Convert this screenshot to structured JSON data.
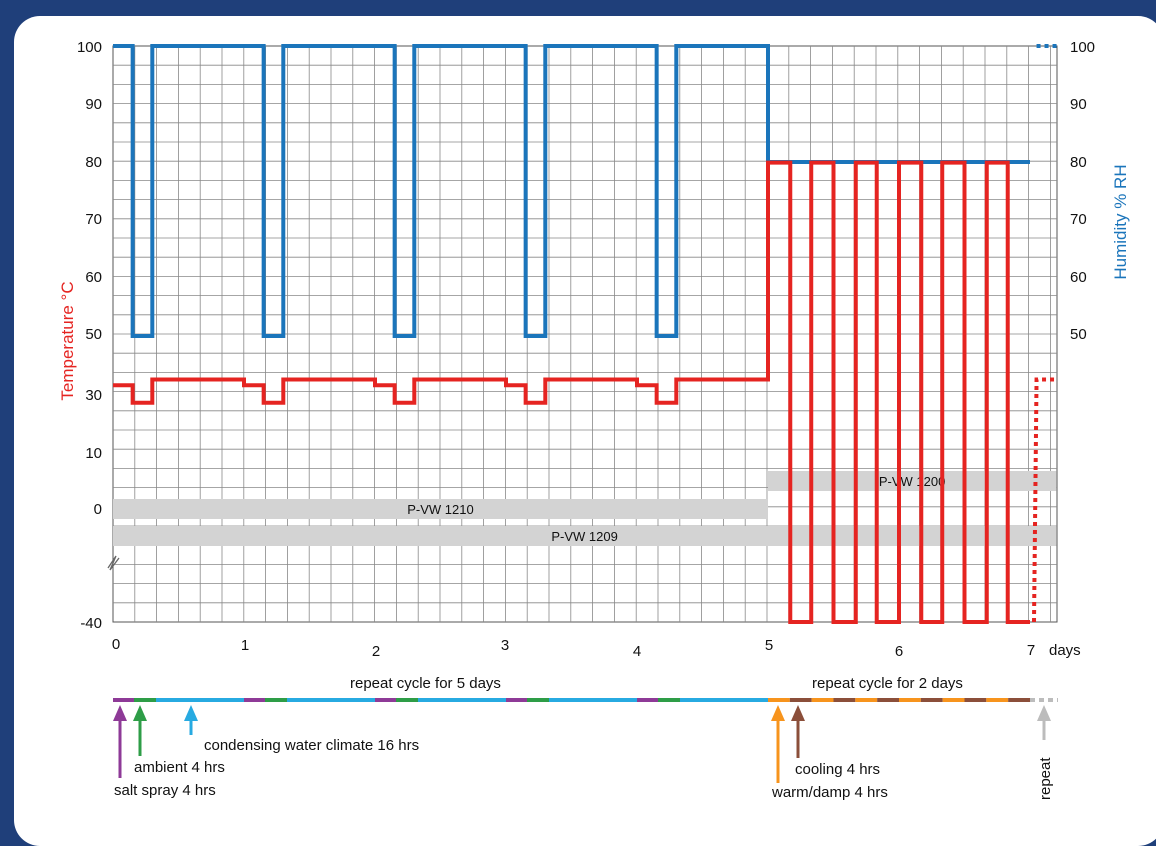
{
  "chart_data": {
    "type": "line",
    "x_unit": "days",
    "xlim": [
      0,
      7.3
    ],
    "x_ticks": [
      "0",
      "1",
      "2",
      "3",
      "4",
      "5",
      "6",
      "7"
    ],
    "left_axis": {
      "label": "Temperature °C",
      "ticks": [
        "100",
        "90",
        "80",
        "70",
        "60",
        "50",
        "30",
        "10",
        "0",
        "-40"
      ]
    },
    "right_axis": {
      "label": "Humidity % RH",
      "ticks": [
        "100",
        "90",
        "80",
        "70",
        "60",
        "50"
      ]
    },
    "series": [
      {
        "name": "Temperature °C",
        "color": "#e52421",
        "unit": "°C",
        "steps": [
          [
            0.0,
            33
          ],
          [
            0.15,
            27
          ],
          [
            0.3,
            35
          ],
          [
            1.0,
            33
          ],
          [
            1.15,
            27
          ],
          [
            1.3,
            35
          ],
          [
            2.0,
            33
          ],
          [
            2.15,
            27
          ],
          [
            2.3,
            35
          ],
          [
            3.0,
            33
          ],
          [
            3.15,
            27
          ],
          [
            3.3,
            35
          ],
          [
            4.0,
            33
          ],
          [
            4.15,
            27
          ],
          [
            4.3,
            35
          ],
          [
            5.0,
            80
          ],
          [
            5.17,
            -40
          ],
          [
            5.33,
            80
          ],
          [
            5.5,
            -40
          ],
          [
            5.67,
            80
          ],
          [
            5.83,
            -40
          ],
          [
            6.0,
            80
          ],
          [
            6.17,
            -40
          ],
          [
            6.33,
            80
          ],
          [
            6.5,
            -40
          ],
          [
            6.67,
            80
          ],
          [
            6.83,
            -40
          ],
          [
            7.0,
            -40
          ]
        ],
        "repeat_dashed": [
          [
            7.0,
            -40
          ],
          [
            7.05,
            35
          ],
          [
            7.2,
            35
          ]
        ]
      },
      {
        "name": "Humidity % RH",
        "color": "#1b75bb",
        "unit": "% RH",
        "steps": [
          [
            0.0,
            100
          ],
          [
            0.15,
            50
          ],
          [
            0.3,
            100
          ],
          [
            1.0,
            100
          ],
          [
            1.15,
            50
          ],
          [
            1.3,
            100
          ],
          [
            2.0,
            100
          ],
          [
            2.15,
            50
          ],
          [
            2.3,
            100
          ],
          [
            3.0,
            100
          ],
          [
            3.15,
            50
          ],
          [
            3.3,
            100
          ],
          [
            4.0,
            100
          ],
          [
            4.15,
            50
          ],
          [
            4.3,
            100
          ],
          [
            5.0,
            80
          ],
          [
            7.0,
            80
          ]
        ],
        "repeat_dashed": [
          [
            7.05,
            100
          ],
          [
            7.2,
            100
          ]
        ]
      }
    ],
    "bands": [
      {
        "label": "P-VW 1210",
        "x_start": 0,
        "x_end": 5
      },
      {
        "label": "P-VW 1209",
        "x_start": 0,
        "x_end": 7.2
      },
      {
        "label": "P-VW 1200",
        "x_start": 5,
        "x_end": 7.2
      }
    ],
    "phases": {
      "repeat_5_days": "repeat cycle for 5 days",
      "repeat_2_days": "repeat cycle for 2 days",
      "salt_spray": "salt spray 4 hrs",
      "ambient": "ambient 4 hrs",
      "condensing": "condensing water climate 16 hrs",
      "cooling": "cooling 4 hrs",
      "warm_damp": "warm/damp 4 hrs",
      "repeat": "repeat"
    },
    "phase_colors": {
      "salt_spray": "#8e3a97",
      "ambient": "#2e9d47",
      "condensing": "#27aae1",
      "cooling": "#8b4f3a",
      "warm_damp": "#f7941d",
      "repeat": "#bcbcbc"
    },
    "x_axis_label": "days",
    "grid": true
  }
}
